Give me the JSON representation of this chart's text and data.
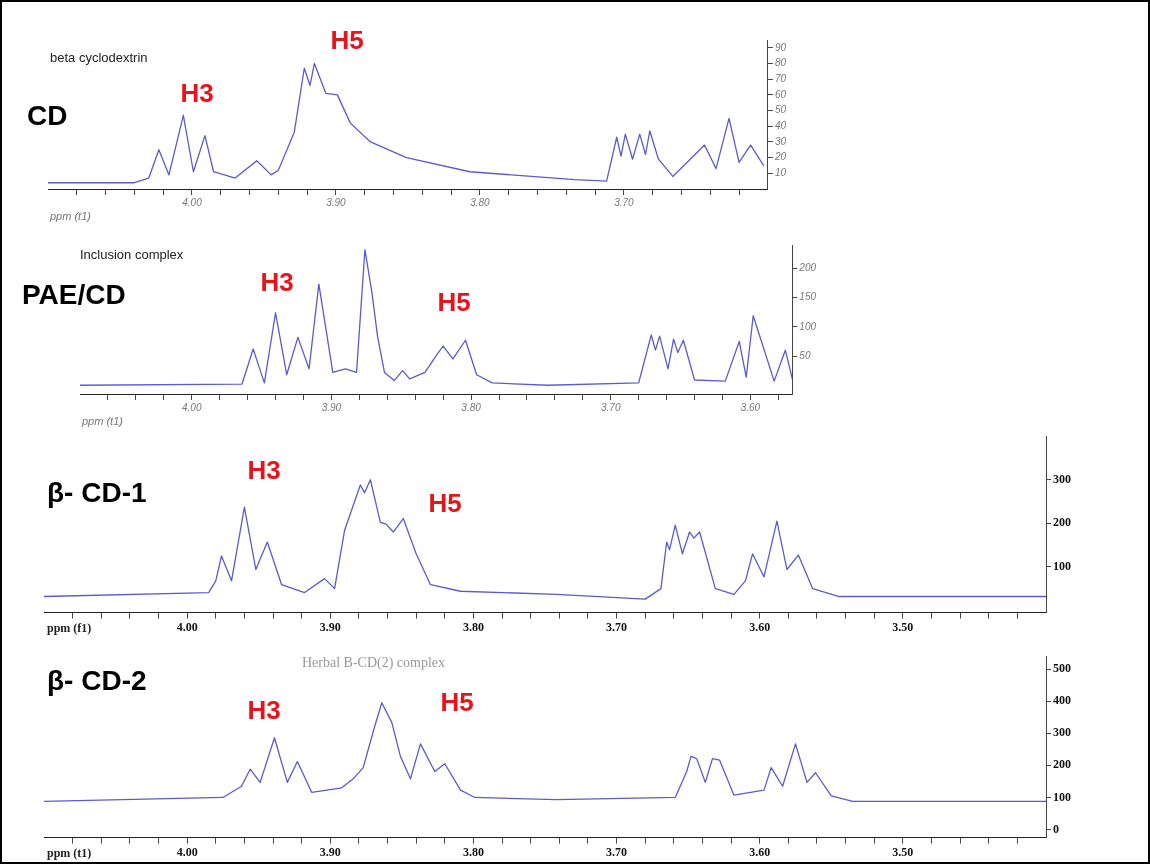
{
  "chart_data": [
    {
      "type": "line",
      "title": "CD",
      "subtitle": "beta cyclodextrin",
      "xlabel": "ppm (t1)",
      "xlim": [
        4.1,
        3.6
      ],
      "ylim": [
        0,
        95
      ],
      "xticks": [
        {
          "value": 4.08,
          "label": null
        },
        {
          "value": 4.06,
          "label": null
        },
        {
          "value": 4.04,
          "label": null
        },
        {
          "value": 4.02,
          "label": null
        },
        {
          "value": 4,
          "label": "4.00"
        },
        {
          "value": 3.98,
          "label": null
        },
        {
          "value": 3.96,
          "label": null
        },
        {
          "value": 3.94,
          "label": null
        },
        {
          "value": 3.92,
          "label": null
        },
        {
          "value": 3.9,
          "label": "3.90"
        },
        {
          "value": 3.88,
          "label": null
        },
        {
          "value": 3.86,
          "label": null
        },
        {
          "value": 3.84,
          "label": null
        },
        {
          "value": 3.82,
          "label": null
        },
        {
          "value": 3.8,
          "label": "3.80"
        },
        {
          "value": 3.78,
          "label": null
        },
        {
          "value": 3.76,
          "label": null
        },
        {
          "value": 3.74,
          "label": null
        },
        {
          "value": 3.72,
          "label": null
        },
        {
          "value": 3.7,
          "label": "3.70"
        },
        {
          "value": 3.68,
          "label": null
        },
        {
          "value": 3.66,
          "label": null
        },
        {
          "value": 3.64,
          "label": null
        },
        {
          "value": 3.62,
          "label": null
        }
      ],
      "yticks": [
        10,
        20,
        30,
        40,
        50,
        60,
        70,
        80,
        90
      ],
      "grid": false,
      "legend": false,
      "annotations": [
        "H3",
        "H5"
      ],
      "series": [
        {
          "color": "#5b5bd0",
          "x": [
            4.1,
            4.04,
            4.03,
            4.023,
            4.016,
            4.006,
            3.999,
            3.991,
            3.985,
            3.97,
            3.955,
            3.945,
            3.94,
            3.929,
            3.922,
            3.918,
            3.915,
            3.907,
            3.899,
            3.89,
            3.876,
            3.851,
            3.807,
            3.734,
            3.712,
            3.705,
            3.702,
            3.699,
            3.694,
            3.689,
            3.685,
            3.682,
            3.676,
            3.666,
            3.644,
            3.636,
            3.627,
            3.62,
            3.612,
            3.603
          ],
          "values": [
            4,
            4,
            7,
            25,
            9,
            47,
            11,
            34,
            11,
            7,
            18,
            9,
            12,
            36,
            77,
            66,
            80,
            61,
            60,
            42,
            30,
            20,
            11,
            6,
            5,
            33,
            21,
            35,
            19,
            35,
            22,
            37,
            19,
            8,
            28,
            13,
            45,
            17,
            28,
            15
          ]
        }
      ]
    },
    {
      "type": "line",
      "title": "PAE/CD",
      "subtitle": "Inclusion complex",
      "xlabel": "ppm (t1)",
      "xlim": [
        4.08,
        3.57
      ],
      "ylim": [
        -15,
        240
      ],
      "xticks": [
        {
          "value": 4.06,
          "label": null
        },
        {
          "value": 4.04,
          "label": null
        },
        {
          "value": 4.02,
          "label": null
        },
        {
          "value": 4,
          "label": "4.00"
        },
        {
          "value": 3.98,
          "label": null
        },
        {
          "value": 3.96,
          "label": null
        },
        {
          "value": 3.94,
          "label": null
        },
        {
          "value": 3.92,
          "label": null
        },
        {
          "value": 3.9,
          "label": "3.90"
        },
        {
          "value": 3.88,
          "label": null
        },
        {
          "value": 3.86,
          "label": null
        },
        {
          "value": 3.84,
          "label": null
        },
        {
          "value": 3.82,
          "label": null
        },
        {
          "value": 3.8,
          "label": "3.80"
        },
        {
          "value": 3.78,
          "label": null
        },
        {
          "value": 3.76,
          "label": null
        },
        {
          "value": 3.74,
          "label": null
        },
        {
          "value": 3.72,
          "label": null
        },
        {
          "value": 3.7,
          "label": "3.70"
        },
        {
          "value": 3.68,
          "label": null
        },
        {
          "value": 3.66,
          "label": null
        },
        {
          "value": 3.64,
          "label": null
        },
        {
          "value": 3.62,
          "label": null
        },
        {
          "value": 3.6,
          "label": "3.60"
        },
        {
          "value": 3.58,
          "label": null
        }
      ],
      "yticks": [
        50,
        100,
        150,
        200
      ],
      "grid": false,
      "legend": false,
      "annotations": [
        "H3",
        "H5"
      ],
      "series": [
        {
          "color": "#5b5bd0",
          "x": [
            4.08,
            3.964,
            3.956,
            3.948,
            3.94,
            3.932,
            3.924,
            3.916,
            3.909,
            3.899,
            3.89,
            3.882,
            3.876,
            3.871,
            3.867,
            3.862,
            3.855,
            3.849,
            3.844,
            3.833,
            3.824,
            3.82,
            3.813,
            3.804,
            3.796,
            3.785,
            3.745,
            3.68,
            3.671,
            3.668,
            3.665,
            3.659,
            3.655,
            3.652,
            3.648,
            3.64,
            3.618,
            3.608,
            3.603,
            3.598,
            3.583,
            3.575,
            3.57
          ],
          "values": [
            0,
            2,
            62,
            4,
            124,
            18,
            82,
            28,
            173,
            22,
            28,
            22,
            232,
            159,
            84,
            22,
            8,
            25,
            11,
            22,
            54,
            67,
            45,
            77,
            18,
            4,
            0,
            4,
            86,
            60,
            84,
            28,
            79,
            56,
            77,
            9,
            7,
            75,
            14,
            119,
            7,
            60,
            11
          ]
        }
      ]
    },
    {
      "type": "line",
      "title": "β- CD-1",
      "xlabel": "ppm (f1)",
      "xlim": [
        4.1,
        3.4
      ],
      "ylim": [
        -5,
        400
      ],
      "xticks": [
        {
          "value": 4.08,
          "label": null
        },
        {
          "value": 4.06,
          "label": null
        },
        {
          "value": 4.04,
          "label": null
        },
        {
          "value": 4.02,
          "label": null
        },
        {
          "value": 4,
          "label": "4.00"
        },
        {
          "value": 3.98,
          "label": null
        },
        {
          "value": 3.96,
          "label": null
        },
        {
          "value": 3.94,
          "label": null
        },
        {
          "value": 3.92,
          "label": null
        },
        {
          "value": 3.9,
          "label": "3.90"
        },
        {
          "value": 3.88,
          "label": null
        },
        {
          "value": 3.86,
          "label": null
        },
        {
          "value": 3.84,
          "label": null
        },
        {
          "value": 3.82,
          "label": null
        },
        {
          "value": 3.8,
          "label": "3.80"
        },
        {
          "value": 3.78,
          "label": null
        },
        {
          "value": 3.76,
          "label": null
        },
        {
          "value": 3.74,
          "label": null
        },
        {
          "value": 3.72,
          "label": null
        },
        {
          "value": 3.7,
          "label": "3.70"
        },
        {
          "value": 3.68,
          "label": null
        },
        {
          "value": 3.66,
          "label": null
        },
        {
          "value": 3.64,
          "label": null
        },
        {
          "value": 3.62,
          "label": null
        },
        {
          "value": 3.6,
          "label": "3.60"
        },
        {
          "value": 3.58,
          "label": null
        },
        {
          "value": 3.56,
          "label": null
        },
        {
          "value": 3.54,
          "label": null
        },
        {
          "value": 3.52,
          "label": null
        },
        {
          "value": 3.5,
          "label": "3.50"
        },
        {
          "value": 3.48,
          "label": null
        },
        {
          "value": 3.46,
          "label": null
        },
        {
          "value": 3.44,
          "label": null
        },
        {
          "value": 3.42,
          "label": null
        }
      ],
      "yticks": [
        100,
        200,
        300
      ],
      "grid": false,
      "legend": false,
      "annotations": [
        "H3",
        "H5"
      ],
      "series": [
        {
          "color": "#5b5bd0",
          "x": [
            4.1,
            3.985,
            3.98,
            3.976,
            3.969,
            3.96,
            3.952,
            3.944,
            3.934,
            3.918,
            3.904,
            3.897,
            3.89,
            3.879,
            3.876,
            3.872,
            3.865,
            3.861,
            3.856,
            3.849,
            3.84,
            3.83,
            3.809,
            3.742,
            3.68,
            3.669,
            3.665,
            3.663,
            3.659,
            3.654,
            3.649,
            3.646,
            3.642,
            3.631,
            3.618,
            3.61,
            3.605,
            3.597,
            3.588,
            3.581,
            3.573,
            3.563,
            3.545,
            3.4
          ],
          "values": [
            32,
            41,
            68,
            125,
            68,
            237,
            94,
            157,
            59,
            41,
            73,
            50,
            184,
            288,
            270,
            300,
            202,
            198,
            180,
            211,
            130,
            59,
            44,
            37,
            26,
            50,
            157,
            139,
            196,
            130,
            180,
            166,
            180,
            50,
            37,
            68,
            130,
            77,
            205,
            94,
            127,
            50,
            32,
            32
          ]
        }
      ]
    },
    {
      "type": "line",
      "title": "β- CD-2",
      "subtitle": "Herbal B-CD(2) complex",
      "xlabel": "ppm (t1)",
      "xlim": [
        4.1,
        3.4
      ],
      "ylim": [
        -25,
        540
      ],
      "xticks": [
        {
          "value": 4.08,
          "label": null
        },
        {
          "value": 4.06,
          "label": null
        },
        {
          "value": 4.04,
          "label": null
        },
        {
          "value": 4.02,
          "label": null
        },
        {
          "value": 4,
          "label": "4.00"
        },
        {
          "value": 3.98,
          "label": null
        },
        {
          "value": 3.96,
          "label": null
        },
        {
          "value": 3.94,
          "label": null
        },
        {
          "value": 3.92,
          "label": null
        },
        {
          "value": 3.9,
          "label": "3.90"
        },
        {
          "value": 3.88,
          "label": null
        },
        {
          "value": 3.86,
          "label": null
        },
        {
          "value": 3.84,
          "label": null
        },
        {
          "value": 3.82,
          "label": null
        },
        {
          "value": 3.8,
          "label": "3.80"
        },
        {
          "value": 3.78,
          "label": null
        },
        {
          "value": 3.76,
          "label": null
        },
        {
          "value": 3.74,
          "label": null
        },
        {
          "value": 3.72,
          "label": null
        },
        {
          "value": 3.7,
          "label": "3.70"
        },
        {
          "value": 3.68,
          "label": null
        },
        {
          "value": 3.66,
          "label": null
        },
        {
          "value": 3.64,
          "label": null
        },
        {
          "value": 3.62,
          "label": null
        },
        {
          "value": 3.6,
          "label": "3.60"
        },
        {
          "value": 3.58,
          "label": null
        },
        {
          "value": 3.56,
          "label": null
        },
        {
          "value": 3.54,
          "label": null
        },
        {
          "value": 3.52,
          "label": null
        },
        {
          "value": 3.5,
          "label": "3.50"
        },
        {
          "value": 3.48,
          "label": null
        },
        {
          "value": 3.46,
          "label": null
        },
        {
          "value": 3.44,
          "label": null
        },
        {
          "value": 3.42,
          "label": null
        }
      ],
      "yticks": [
        0,
        100,
        200,
        300,
        400,
        500
      ],
      "grid": false,
      "legend": false,
      "annotations": [
        "H3",
        "H5"
      ],
      "series": [
        {
          "color": "#5b5bd0",
          "x": [
            4.1,
            3.975,
            3.962,
            3.956,
            3.949,
            3.939,
            3.93,
            3.923,
            3.913,
            3.892,
            3.884,
            3.877,
            3.869,
            3.864,
            3.857,
            3.851,
            3.844,
            3.837,
            3.827,
            3.82,
            3.809,
            3.799,
            3.742,
            3.659,
            3.651,
            3.648,
            3.644,
            3.638,
            3.633,
            3.628,
            3.618,
            3.597,
            3.592,
            3.584,
            3.575,
            3.567,
            3.561,
            3.55,
            3.535,
            3.4
          ],
          "values": [
            88,
            100,
            135,
            188,
            147,
            286,
            147,
            212,
            116,
            130,
            158,
            193,
            321,
            395,
            333,
            228,
            158,
            267,
            181,
            205,
            123,
            100,
            93,
            100,
            181,
            228,
            221,
            147,
            221,
            216,
            107,
            123,
            193,
            135,
            267,
            147,
            177,
            105,
            88,
            88
          ]
        }
      ]
    }
  ]
}
